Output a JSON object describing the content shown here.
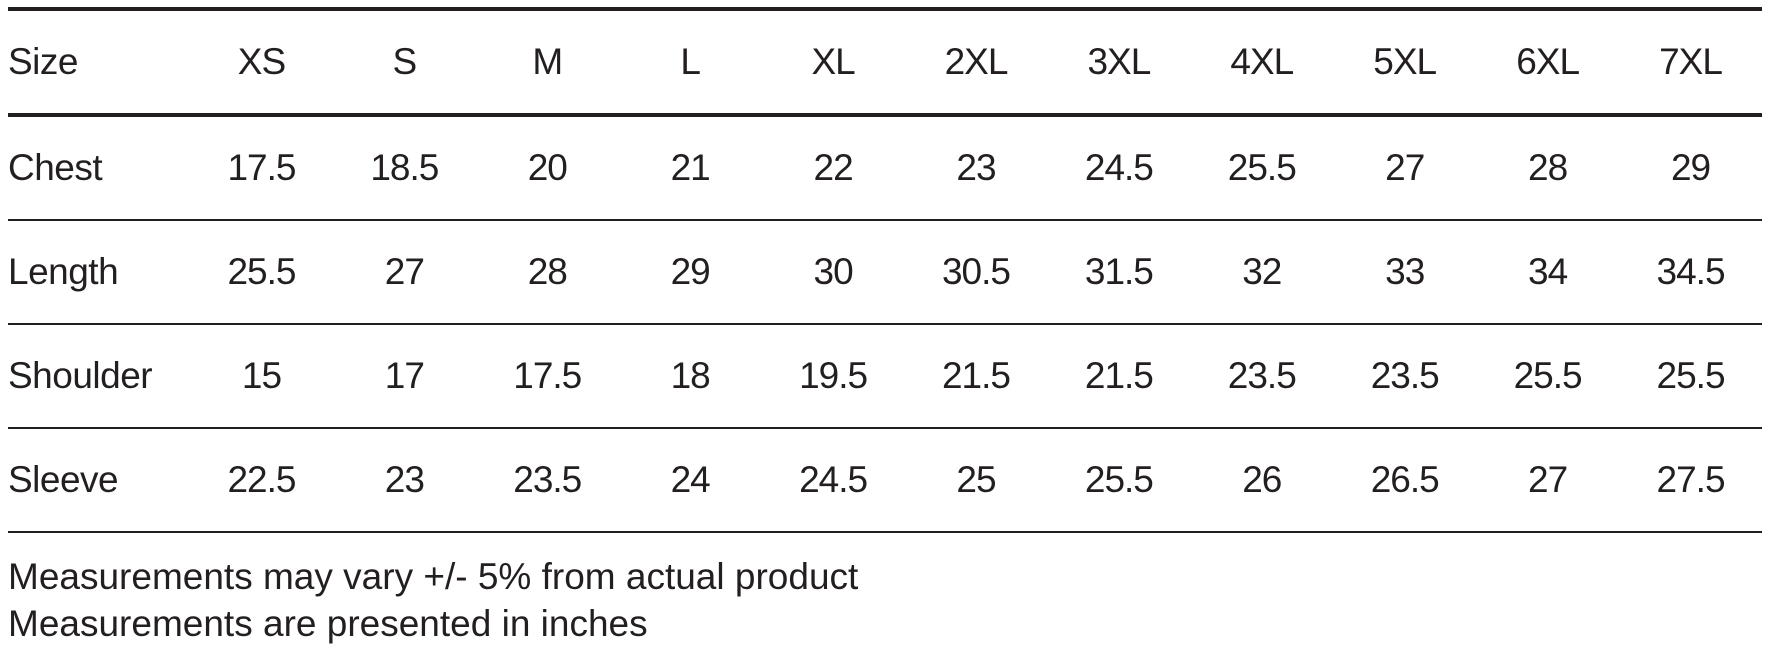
{
  "table": {
    "header_label": "Size",
    "sizes": [
      "XS",
      "S",
      "M",
      "L",
      "XL",
      "2XL",
      "3XL",
      "4XL",
      "5XL",
      "6XL",
      "7XL"
    ],
    "rows": [
      {
        "label": "Chest",
        "values": [
          "17.5",
          "18.5",
          "20",
          "21",
          "22",
          "23",
          "24.5",
          "25.5",
          "27",
          "28",
          "29"
        ]
      },
      {
        "label": "Length",
        "values": [
          "25.5",
          "27",
          "28",
          "29",
          "30",
          "30.5",
          "31.5",
          "32",
          "33",
          "34",
          "34.5"
        ]
      },
      {
        "label": "Shoulder",
        "values": [
          "15",
          "17",
          "17.5",
          "18",
          "19.5",
          "21.5",
          "21.5",
          "23.5",
          "23.5",
          "25.5",
          "25.5"
        ]
      },
      {
        "label": "Sleeve",
        "values": [
          "22.5",
          "23",
          "23.5",
          "24",
          "24.5",
          "25",
          "25.5",
          "26",
          "26.5",
          "27",
          "27.5"
        ]
      }
    ]
  },
  "notes": [
    "Measurements may vary +/- 5% from actual product",
    "Measurements are presented in inches"
  ]
}
